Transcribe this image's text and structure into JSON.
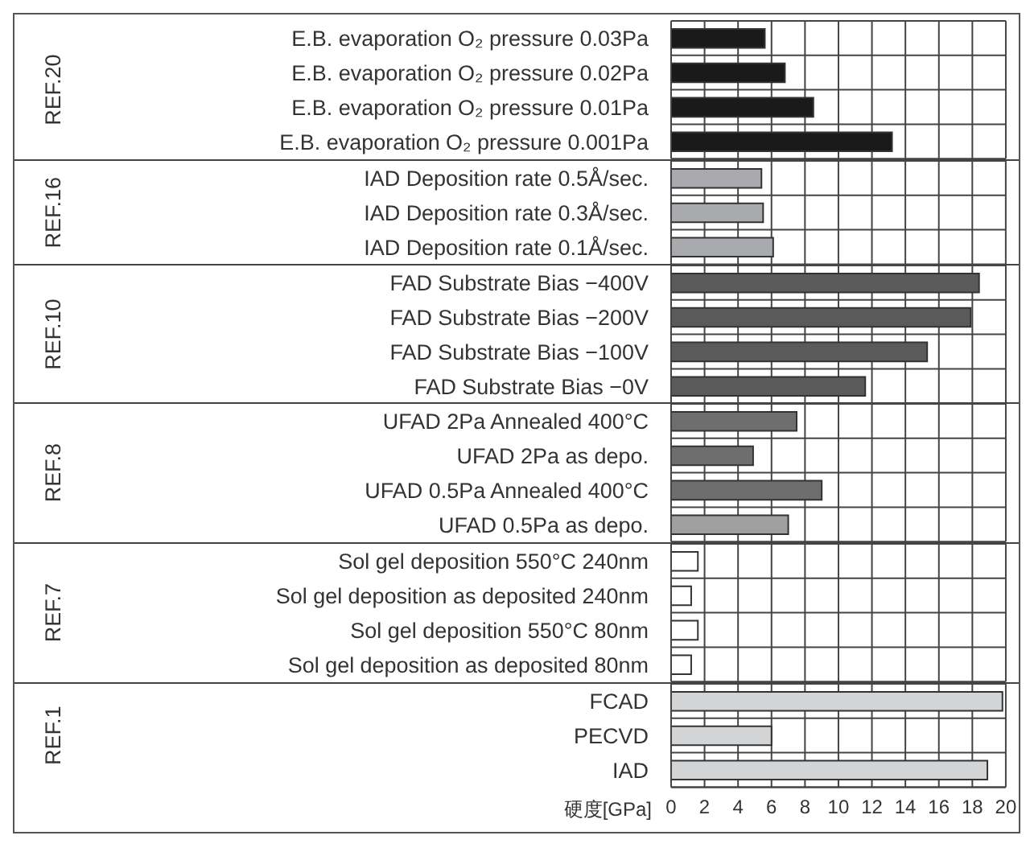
{
  "chart_data": [
    {
      "type": "bar",
      "orientation": "horizontal",
      "ylabel": "REF.20",
      "categories": [
        "E.B. evaporation O₂ pressure 0.03Pa",
        "E.B. evaporation O₂ pressure 0.02Pa",
        "E.B. evaporation O₂ pressure 0.01Pa",
        "E.B. evaporation O₂ pressure 0.001Pa"
      ],
      "values": [
        5.6,
        6.8,
        8.5,
        13.2
      ],
      "colors": [
        "#1a1a1a",
        "#1a1a1a",
        "#1a1a1a",
        "#1a1a1a"
      ],
      "xlim": [
        0,
        20
      ],
      "xticks": [
        0,
        2,
        4,
        6,
        8,
        10,
        12,
        14,
        16,
        18,
        20
      ],
      "grid": true,
      "tick_labels": "y"
    },
    {
      "type": "bar",
      "orientation": "horizontal",
      "ylabel": "REF.16",
      "categories": [
        "IAD Deposition rate 0.5Å/sec.",
        "IAD Deposition rate 0.3Å/sec.",
        "IAD Deposition rate 0.1Å/sec."
      ],
      "values": [
        5.4,
        5.5,
        6.1
      ],
      "colors": [
        "#a9aaad",
        "#a9aaad",
        "#a9aaad"
      ],
      "xlim": [
        0,
        20
      ],
      "xticks": [
        0,
        2,
        4,
        6,
        8,
        10,
        12,
        14,
        16,
        18,
        20
      ],
      "grid": true,
      "tick_labels": "y"
    },
    {
      "type": "bar",
      "orientation": "horizontal",
      "ylabel": "REF.10",
      "categories": [
        "FAD Substrate Bias −400V",
        "FAD Substrate Bias −200V",
        "FAD Substrate Bias −100V",
        "FAD Substrate Bias −0V"
      ],
      "values": [
        18.4,
        17.9,
        15.3,
        11.6
      ],
      "colors": [
        "#5a5a5a",
        "#5a5a5a",
        "#5a5a5a",
        "#5a5a5a"
      ],
      "xlim": [
        0,
        20
      ],
      "xticks": [
        0,
        2,
        4,
        6,
        8,
        10,
        12,
        14,
        16,
        18,
        20
      ],
      "grid": true,
      "tick_labels": "y"
    },
    {
      "type": "bar",
      "orientation": "horizontal",
      "ylabel": "REF.8",
      "categories": [
        "UFAD 2Pa Annealed 400°C",
        "UFAD 2Pa as depo.",
        "UFAD 0.5Pa Annealed 400°C",
        "UFAD 0.5Pa as depo."
      ],
      "values": [
        7.5,
        4.9,
        9.0,
        7.0
      ],
      "colors": [
        "#6e6e6e",
        "#6e6e6e",
        "#6e6e6e",
        "#a0a0a0"
      ],
      "xlim": [
        0,
        20
      ],
      "xticks": [
        0,
        2,
        4,
        6,
        8,
        10,
        12,
        14,
        16,
        18,
        20
      ],
      "grid": true,
      "tick_labels": "y"
    },
    {
      "type": "bar",
      "orientation": "horizontal",
      "ylabel": "REF.7",
      "categories": [
        "Sol gel deposition 550°C 240nm",
        "Sol gel deposition as deposited 240nm",
        "Sol gel deposition 550°C 80nm",
        "Sol gel deposition as deposited 80nm"
      ],
      "values": [
        1.6,
        1.2,
        1.6,
        1.2
      ],
      "colors": [
        "#ffffff",
        "#ffffff",
        "#ffffff",
        "#ffffff"
      ],
      "xlim": [
        0,
        20
      ],
      "xticks": [
        0,
        2,
        4,
        6,
        8,
        10,
        12,
        14,
        16,
        18,
        20
      ],
      "grid": true,
      "tick_labels": "y"
    },
    {
      "type": "bar",
      "orientation": "horizontal",
      "ylabel": "REF.1",
      "xlabel": "硬度[GPa]",
      "categories": [
        "FCAD",
        "PECVD",
        "IAD"
      ],
      "values": [
        19.8,
        6.0,
        18.9
      ],
      "colors": [
        "#d3d4d6",
        "#d3d4d6",
        "#d3d4d6"
      ],
      "xlim": [
        0,
        20
      ],
      "xticks": [
        0,
        2,
        4,
        6,
        8,
        10,
        12,
        14,
        16,
        18,
        20
      ],
      "grid": true
    }
  ]
}
